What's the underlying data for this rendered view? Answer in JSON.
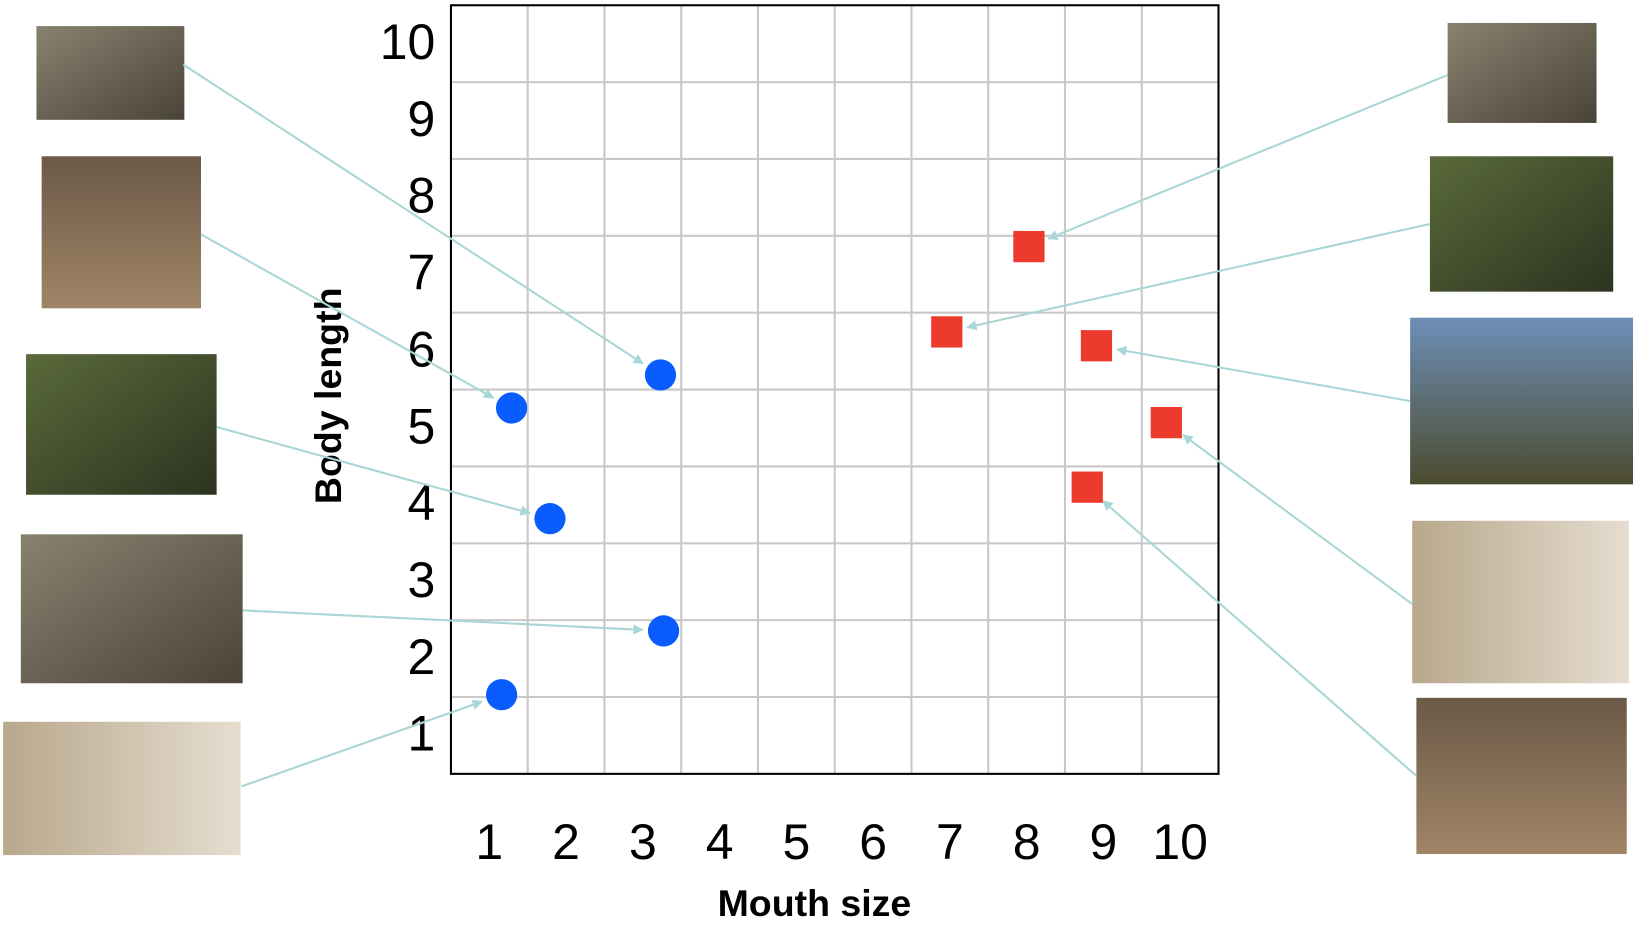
{
  "chart_data": {
    "type": "scatter",
    "x_label": "Mouth size",
    "y_label": "Body length",
    "xlim": [
      0.5,
      10.5
    ],
    "ylim": [
      0.5,
      10.5
    ],
    "xticks": [
      1,
      2,
      3,
      4,
      5,
      6,
      7,
      8,
      9,
      10
    ],
    "yticks": [
      1,
      2,
      3,
      4,
      5,
      6,
      7,
      8,
      9,
      10
    ],
    "grid": true,
    "series": [
      {
        "color": "#0a5cff",
        "marker": "circle",
        "x": [
          3.23,
          1.29,
          1.79,
          3.27,
          1.16
        ],
        "values": [
          5.69,
          5.26,
          3.82,
          2.36,
          1.53
        ]
      },
      {
        "color": "#ec3a2c",
        "marker": "square",
        "x": [
          8.03,
          6.96,
          8.91,
          9.82,
          8.79
        ],
        "values": [
          7.36,
          6.25,
          6.07,
          5.07,
          4.23
        ]
      }
    ]
  }
}
